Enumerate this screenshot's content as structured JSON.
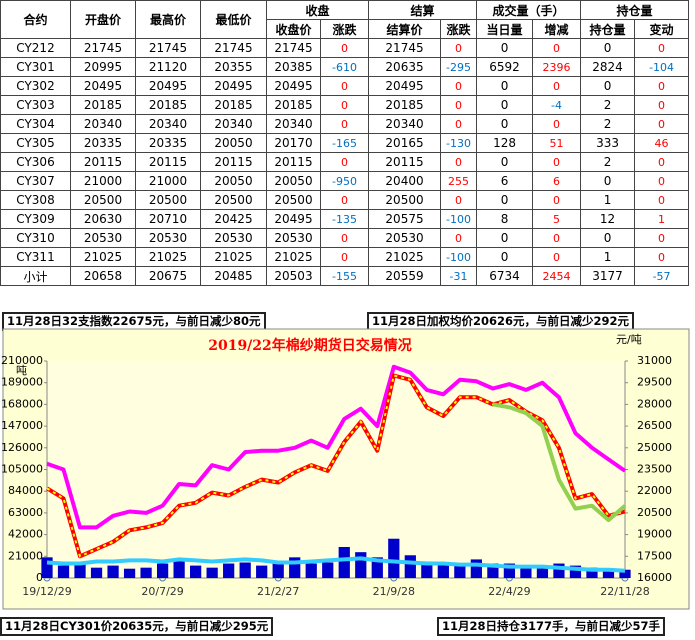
{
  "table": {
    "groups": [
      "收盘",
      "结算",
      "成交量（手）",
      "持仓量"
    ],
    "columns": [
      "合约",
      "开盘价",
      "最高价",
      "最低价",
      "收盘价",
      "涨跌",
      "结算价",
      "涨跌",
      "当日量",
      "增减",
      "持仓量",
      "变动"
    ],
    "rows": [
      [
        "CY212",
        21745,
        21745,
        21745,
        21745,
        0,
        21745,
        0,
        0,
        0,
        0,
        0
      ],
      [
        "CY301",
        20995,
        21120,
        20355,
        20385,
        -610,
        20635,
        -295,
        6592,
        2396,
        2824,
        -104
      ],
      [
        "CY302",
        20495,
        20495,
        20495,
        20495,
        0,
        20495,
        0,
        0,
        0,
        0,
        0
      ],
      [
        "CY303",
        20185,
        20185,
        20185,
        20185,
        0,
        20185,
        0,
        0,
        -4,
        2,
        0
      ],
      [
        "CY304",
        20340,
        20340,
        20340,
        20340,
        0,
        20340,
        0,
        0,
        0,
        2,
        0
      ],
      [
        "CY305",
        20335,
        20335,
        20050,
        20170,
        -165,
        20165,
        -130,
        128,
        51,
        333,
        46
      ],
      [
        "CY306",
        20115,
        20115,
        20115,
        20115,
        0,
        20115,
        0,
        0,
        0,
        2,
        0
      ],
      [
        "CY307",
        21000,
        21000,
        20050,
        20050,
        -950,
        20400,
        255,
        6,
        6,
        0,
        0
      ],
      [
        "CY308",
        20500,
        20500,
        20500,
        20500,
        0,
        20500,
        0,
        0,
        0,
        1,
        0
      ],
      [
        "CY309",
        20630,
        20710,
        20425,
        20495,
        -135,
        20575,
        -100,
        8,
        5,
        12,
        1
      ],
      [
        "CY310",
        20530,
        20530,
        20530,
        20530,
        0,
        20530,
        0,
        0,
        0,
        0,
        0
      ],
      [
        "CY311",
        21025,
        21025,
        21025,
        21025,
        0,
        21025,
        -100,
        0,
        0,
        1,
        0
      ],
      [
        "小计",
        20658,
        20675,
        20485,
        20503,
        -155,
        20559,
        -31,
        6734,
        2454,
        3177,
        -57
      ]
    ]
  },
  "notes": [
    "11月28日32支指数22675元，与前日减少80元",
    "11月28日加权均价20626元，与前日减少292元",
    "11月28日CY301价20635元，与前日减少295元",
    "11月28日持仓3177手，与前日减少57手"
  ],
  "chart_data": {
    "type": "line",
    "title": "2019/22年棉纱期货日交易情况",
    "y_label": "吨",
    "y2_label": "元/吨",
    "categories": [
      "19/12/29",
      null,
      null,
      null,
      null,
      null,
      null,
      "20/7/29",
      null,
      null,
      null,
      null,
      null,
      null,
      "21/2/27",
      null,
      null,
      null,
      null,
      null,
      null,
      "21/9/28",
      null,
      null,
      null,
      null,
      null,
      null,
      "22/4/29",
      null,
      null,
      null,
      null,
      null,
      null,
      "22/11/28"
    ],
    "ylim": [
      0,
      210000
    ],
    "yticks": [
      0,
      21000,
      42000,
      63000,
      84000,
      105000,
      126000,
      147000,
      168000,
      189000,
      210000
    ],
    "y2lim": [
      16000,
      31000
    ],
    "y2ticks": [
      16000,
      17500,
      19000,
      20500,
      22000,
      23500,
      25000,
      26500,
      28000,
      29500,
      31000
    ],
    "series": [
      {
        "color": "#ff00ff",
        "axis": "y2",
        "values": [
          23900,
          23500,
          19500,
          19500,
          20300,
          20600,
          20500,
          21000,
          22500,
          22400,
          23800,
          23500,
          24700,
          24800,
          24800,
          25000,
          25500,
          25000,
          27000,
          27700,
          26500,
          30600,
          30200,
          29000,
          28700,
          29700,
          29600,
          29100,
          29400,
          29000,
          29500,
          28500,
          26000,
          25000,
          24200,
          23400
        ]
      },
      {
        "color": "#ff0000",
        "dash_color": "#ffff00",
        "axis": "y2",
        "values": [
          22200,
          21500,
          17500,
          18000,
          18500,
          19300,
          19500,
          19800,
          21000,
          21200,
          21900,
          21700,
          22300,
          22800,
          22600,
          23300,
          23800,
          23400,
          25400,
          26800,
          24800,
          30000,
          29700,
          27800,
          27200,
          28500,
          28500,
          28000,
          28300,
          27500,
          26900,
          25000,
          21500,
          21800,
          20300,
          20600
        ]
      },
      {
        "color": "#92d050",
        "axis": "y2",
        "values": [
          null,
          null,
          null,
          null,
          null,
          null,
          null,
          null,
          null,
          null,
          null,
          null,
          null,
          null,
          null,
          null,
          null,
          null,
          null,
          null,
          null,
          null,
          null,
          null,
          null,
          null,
          null,
          28000,
          27800,
          27400,
          26500,
          22800,
          20800,
          21000,
          20000,
          21000
        ]
      },
      {
        "color": "#0000cc",
        "type": "bar",
        "values": [
          20000,
          12000,
          14000,
          10000,
          12000,
          9000,
          10000,
          14000,
          16000,
          12000,
          10000,
          14000,
          15000,
          12000,
          16000,
          20000,
          14000,
          15000,
          30000,
          25000,
          20000,
          38000,
          22000,
          16000,
          15000,
          12000,
          18000,
          14000,
          14000,
          10000,
          12000,
          14000,
          12000,
          10000,
          9000,
          8000
        ]
      },
      {
        "color": "#33ccff",
        "values": [
          15000,
          14000,
          14000,
          16000,
          16000,
          17000,
          17000,
          16000,
          18000,
          17000,
          16000,
          17000,
          18000,
          17000,
          15000,
          15000,
          16000,
          17000,
          18000,
          19000,
          17000,
          16000,
          15000,
          14000,
          14000,
          13000,
          13000,
          12000,
          11000,
          11000,
          11000,
          10000,
          9000,
          8000,
          8000,
          7000
        ]
      }
    ]
  }
}
